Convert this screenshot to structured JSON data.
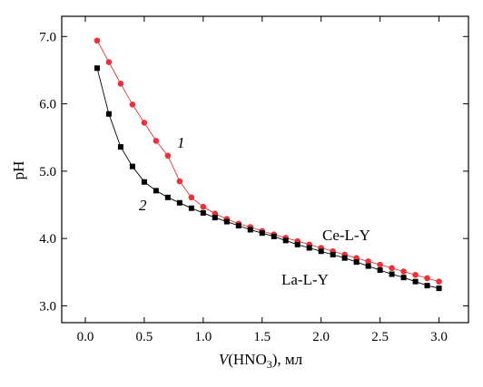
{
  "chart_data": {
    "type": "line",
    "title": "",
    "xlabel_italic": "V",
    "xlabel_rest": "(HNO",
    "xlabel_sub": "3",
    "xlabel_tail": "), мл",
    "ylabel": "pH",
    "xlim": [
      -0.2,
      3.25
    ],
    "ylim": [
      2.75,
      7.3
    ],
    "x_ticks": [
      "0.0",
      "0.5",
      "1.0",
      "1.5",
      "2.0",
      "2.5",
      "3.0"
    ],
    "y_ticks": [
      "3.0",
      "4.0",
      "5.0",
      "6.0",
      "7.0"
    ],
    "grid": false,
    "series": [
      {
        "name": "Ce-L-Y",
        "curve_number": "1",
        "color": "#e8333a",
        "marker": "circle",
        "x": [
          0.1,
          0.2,
          0.3,
          0.4,
          0.5,
          0.6,
          0.7,
          0.8,
          0.9,
          1.0,
          1.1,
          1.2,
          1.3,
          1.4,
          1.5,
          1.6,
          1.7,
          1.8,
          1.9,
          2.0,
          2.1,
          2.2,
          2.3,
          2.4,
          2.5,
          2.6,
          2.7,
          2.8,
          2.9,
          3.0
        ],
        "y": [
          6.94,
          6.62,
          6.3,
          5.99,
          5.72,
          5.45,
          5.23,
          4.85,
          4.61,
          4.47,
          4.37,
          4.29,
          4.22,
          4.17,
          4.11,
          4.06,
          4.01,
          3.96,
          3.91,
          3.86,
          3.81,
          3.76,
          3.71,
          3.66,
          3.61,
          3.56,
          3.51,
          3.46,
          3.41,
          3.36
        ]
      },
      {
        "name": "La-L-Y",
        "curve_number": "2",
        "color": "#000000",
        "marker": "square",
        "x": [
          0.1,
          0.2,
          0.3,
          0.4,
          0.5,
          0.6,
          0.7,
          0.8,
          0.9,
          1.0,
          1.1,
          1.2,
          1.3,
          1.4,
          1.5,
          1.6,
          1.7,
          1.8,
          1.9,
          2.0,
          2.1,
          2.2,
          2.3,
          2.4,
          2.5,
          2.6,
          2.7,
          2.8,
          2.9,
          3.0
        ],
        "y": [
          6.53,
          5.85,
          5.36,
          5.07,
          4.84,
          4.71,
          4.61,
          4.53,
          4.45,
          4.38,
          4.31,
          4.25,
          4.19,
          4.13,
          4.08,
          4.03,
          3.97,
          3.91,
          3.86,
          3.81,
          3.76,
          3.71,
          3.65,
          3.59,
          3.53,
          3.47,
          3.42,
          3.36,
          3.3,
          3.26
        ]
      }
    ]
  }
}
